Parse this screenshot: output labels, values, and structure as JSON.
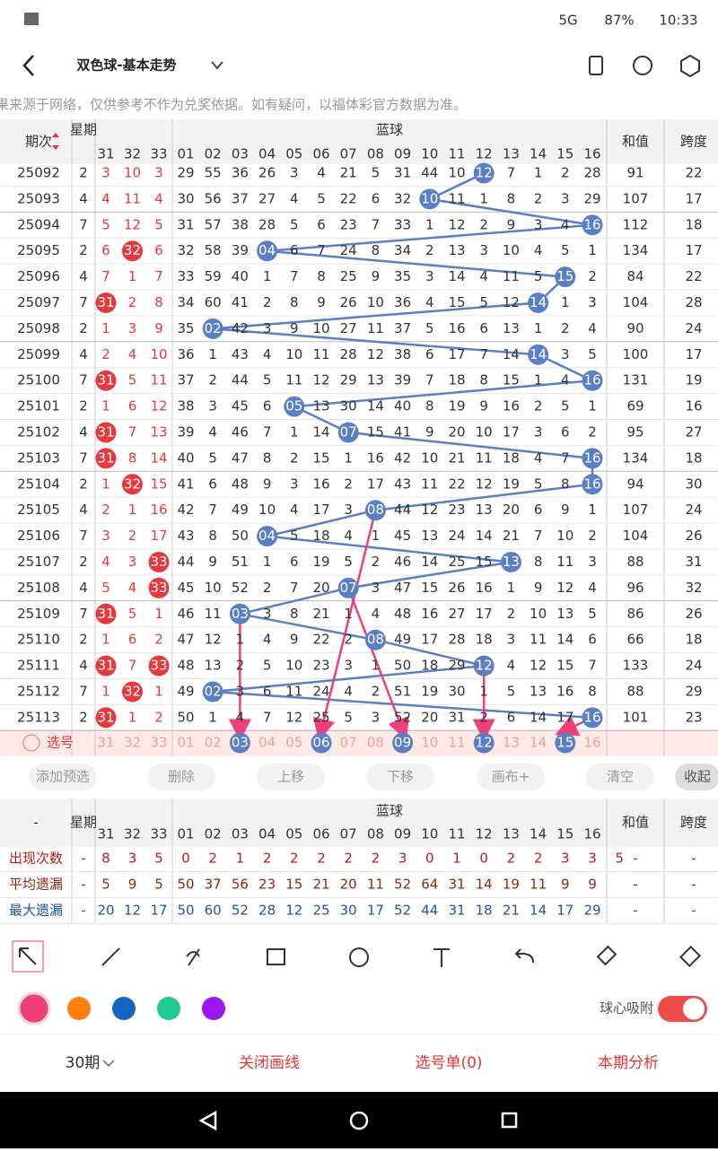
{
  "status_bar": {
    "network": "5G",
    "battery": "87%",
    "time": "10:33"
  },
  "header": {
    "title": "双色球-基本走势"
  },
  "notice": "注：开奖结果来源于网络，仅供参考不作为兑奖依据。如有疑问，以福体彩官方数据为准。",
  "table": {
    "headers": {
      "issue": "期次",
      "week": "星期",
      "blue_group": "蓝球",
      "sum": "和值",
      "span": "跨度",
      "red_cols": [
        "31",
        "32",
        "33"
      ],
      "blue_cols": [
        "01",
        "02",
        "03",
        "04",
        "05",
        "06",
        "07",
        "08",
        "09",
        "10",
        "11",
        "12",
        "13",
        "14",
        "15",
        "16"
      ]
    },
    "rows": [
      {
        "issue": "25092",
        "week": "2",
        "red": [
          "3",
          "10",
          "3"
        ],
        "red_balls": [],
        "blue": [
          "29",
          "55",
          "36",
          "26",
          "3",
          "4",
          "21",
          "5",
          "31",
          "44",
          "10",
          "12",
          "7",
          "1",
          "2",
          "28"
        ],
        "blue_ball": 11,
        "sum": "91",
        "span": "22"
      },
      {
        "issue": "25093",
        "week": "4",
        "red": [
          "4",
          "11",
          "4"
        ],
        "red_balls": [],
        "blue": [
          "30",
          "56",
          "37",
          "27",
          "4",
          "5",
          "22",
          "6",
          "32",
          "10",
          "11",
          "1",
          "8",
          "2",
          "3",
          "29"
        ],
        "blue_ball": 9,
        "sum": "107",
        "span": "17"
      },
      {
        "issue": "25094",
        "week": "7",
        "red": [
          "5",
          "12",
          "5"
        ],
        "red_balls": [],
        "blue": [
          "31",
          "57",
          "38",
          "28",
          "5",
          "6",
          "23",
          "7",
          "33",
          "1",
          "12",
          "2",
          "9",
          "3",
          "4",
          "16"
        ],
        "blue_ball": 15,
        "sum": "112",
        "span": "18"
      },
      {
        "issue": "25095",
        "week": "2",
        "red": [
          "6",
          "32",
          "6"
        ],
        "red_balls": [
          1
        ],
        "blue": [
          "32",
          "58",
          "39",
          "04",
          "6",
          "7",
          "24",
          "8",
          "34",
          "2",
          "13",
          "3",
          "10",
          "4",
          "5",
          "1"
        ],
        "blue_ball": 3,
        "sum": "134",
        "span": "17"
      },
      {
        "issue": "25096",
        "week": "4",
        "red": [
          "7",
          "1",
          "7"
        ],
        "red_balls": [],
        "blue": [
          "33",
          "59",
          "40",
          "1",
          "7",
          "8",
          "25",
          "9",
          "35",
          "3",
          "14",
          "4",
          "11",
          "5",
          "15",
          "2"
        ],
        "blue_ball": 14,
        "sum": "84",
        "span": "22"
      },
      {
        "issue": "25097",
        "week": "7",
        "red": [
          "31",
          "2",
          "8"
        ],
        "red_balls": [
          0
        ],
        "blue": [
          "34",
          "60",
          "41",
          "2",
          "8",
          "9",
          "26",
          "10",
          "36",
          "4",
          "15",
          "5",
          "12",
          "14",
          "1",
          "3"
        ],
        "blue_ball": 13,
        "sum": "104",
        "span": "28"
      },
      {
        "issue": "25098",
        "week": "2",
        "red": [
          "1",
          "3",
          "9"
        ],
        "red_balls": [],
        "blue": [
          "35",
          "02",
          "42",
          "3",
          "9",
          "10",
          "27",
          "11",
          "37",
          "5",
          "16",
          "6",
          "13",
          "1",
          "2",
          "4"
        ],
        "blue_ball": 1,
        "sum": "90",
        "span": "24"
      },
      {
        "issue": "25099",
        "week": "4",
        "red": [
          "2",
          "4",
          "10"
        ],
        "red_balls": [],
        "blue": [
          "36",
          "1",
          "43",
          "4",
          "10",
          "11",
          "28",
          "12",
          "38",
          "6",
          "17",
          "7",
          "14",
          "14",
          "3",
          "5"
        ],
        "blue_ball": 13,
        "sum": "100",
        "span": "17"
      },
      {
        "issue": "25100",
        "week": "7",
        "red": [
          "31",
          "5",
          "11"
        ],
        "red_balls": [
          0
        ],
        "blue": [
          "37",
          "2",
          "44",
          "5",
          "11",
          "12",
          "29",
          "13",
          "39",
          "7",
          "18",
          "8",
          "15",
          "1",
          "4",
          "16"
        ],
        "blue_ball": 15,
        "sum": "131",
        "span": "19"
      },
      {
        "issue": "25101",
        "week": "2",
        "red": [
          "1",
          "6",
          "12"
        ],
        "red_balls": [],
        "blue": [
          "38",
          "3",
          "45",
          "6",
          "05",
          "13",
          "30",
          "14",
          "40",
          "8",
          "19",
          "9",
          "16",
          "2",
          "5",
          "1"
        ],
        "blue_ball": 4,
        "sum": "69",
        "span": "16"
      },
      {
        "issue": "25102",
        "week": "4",
        "red": [
          "31",
          "7",
          "13"
        ],
        "red_balls": [
          0
        ],
        "blue": [
          "39",
          "4",
          "46",
          "7",
          "1",
          "14",
          "07",
          "15",
          "41",
          "9",
          "20",
          "10",
          "17",
          "3",
          "6",
          "2"
        ],
        "blue_ball": 6,
        "sum": "95",
        "span": "27"
      },
      {
        "issue": "25103",
        "week": "7",
        "red": [
          "31",
          "8",
          "14"
        ],
        "red_balls": [
          0
        ],
        "blue": [
          "40",
          "5",
          "47",
          "8",
          "2",
          "15",
          "1",
          "16",
          "42",
          "10",
          "21",
          "11",
          "18",
          "4",
          "7",
          "16"
        ],
        "blue_ball": 15,
        "sum": "134",
        "span": "18"
      },
      {
        "issue": "25104",
        "week": "2",
        "red": [
          "1",
          "32",
          "15"
        ],
        "red_balls": [
          1
        ],
        "blue": [
          "41",
          "6",
          "48",
          "9",
          "3",
          "16",
          "2",
          "17",
          "43",
          "11",
          "22",
          "12",
          "19",
          "5",
          "8",
          "16"
        ],
        "blue_ball": 15,
        "sum": "94",
        "span": "30"
      },
      {
        "issue": "25105",
        "week": "4",
        "red": [
          "2",
          "1",
          "16"
        ],
        "red_balls": [],
        "blue": [
          "42",
          "7",
          "49",
          "10",
          "4",
          "17",
          "3",
          "08",
          "44",
          "12",
          "23",
          "13",
          "20",
          "6",
          "9",
          "1"
        ],
        "blue_ball": 7,
        "sum": "107",
        "span": "24"
      },
      {
        "issue": "25106",
        "week": "7",
        "red": [
          "3",
          "2",
          "17"
        ],
        "red_balls": [],
        "blue": [
          "43",
          "8",
          "50",
          "04",
          "5",
          "18",
          "4",
          "1",
          "45",
          "13",
          "24",
          "14",
          "21",
          "7",
          "10",
          "2"
        ],
        "blue_ball": 3,
        "sum": "104",
        "span": "26"
      },
      {
        "issue": "25107",
        "week": "2",
        "red": [
          "4",
          "3",
          "33"
        ],
        "red_balls": [
          2
        ],
        "blue": [
          "44",
          "9",
          "51",
          "1",
          "6",
          "19",
          "5",
          "2",
          "46",
          "14",
          "25",
          "15",
          "13",
          "8",
          "11",
          "3"
        ],
        "blue_ball": 12,
        "sum": "88",
        "span": "31"
      },
      {
        "issue": "25108",
        "week": "4",
        "red": [
          "5",
          "4",
          "33"
        ],
        "red_balls": [
          2
        ],
        "blue": [
          "45",
          "10",
          "52",
          "2",
          "7",
          "20",
          "07",
          "3",
          "47",
          "15",
          "26",
          "16",
          "1",
          "9",
          "12",
          "4"
        ],
        "blue_ball": 6,
        "sum": "96",
        "span": "32"
      },
      {
        "issue": "25109",
        "week": "7",
        "red": [
          "31",
          "5",
          "1"
        ],
        "red_balls": [
          0
        ],
        "blue": [
          "46",
          "11",
          "03",
          "3",
          "8",
          "21",
          "1",
          "4",
          "48",
          "16",
          "27",
          "17",
          "2",
          "10",
          "13",
          "5"
        ],
        "blue_ball": 2,
        "sum": "86",
        "span": "26"
      },
      {
        "issue": "25110",
        "week": "2",
        "red": [
          "1",
          "6",
          "2"
        ],
        "red_balls": [],
        "blue": [
          "47",
          "12",
          "1",
          "4",
          "9",
          "22",
          "2",
          "08",
          "49",
          "17",
          "28",
          "18",
          "3",
          "11",
          "14",
          "6"
        ],
        "blue_ball": 7,
        "sum": "66",
        "span": "18"
      },
      {
        "issue": "25111",
        "week": "4",
        "red": [
          "31",
          "7",
          "33"
        ],
        "red_balls": [
          0,
          2
        ],
        "blue": [
          "48",
          "13",
          "2",
          "5",
          "10",
          "23",
          "3",
          "1",
          "50",
          "18",
          "29",
          "12",
          "4",
          "12",
          "15",
          "7"
        ],
        "blue_ball": 11,
        "sum": "133",
        "span": "24"
      },
      {
        "issue": "25112",
        "week": "7",
        "red": [
          "1",
          "32",
          "1"
        ],
        "red_balls": [
          1
        ],
        "blue": [
          "49",
          "02",
          "3",
          "6",
          "11",
          "24",
          "4",
          "2",
          "51",
          "19",
          "30",
          "1",
          "5",
          "13",
          "16",
          "8"
        ],
        "blue_ball": 1,
        "sum": "88",
        "span": "29"
      },
      {
        "issue": "25113",
        "week": "2",
        "red": [
          "31",
          "1",
          "2"
        ],
        "red_balls": [
          0
        ],
        "blue": [
          "50",
          "1",
          "4",
          "7",
          "12",
          "25",
          "5",
          "3",
          "52",
          "20",
          "31",
          "2",
          "6",
          "14",
          "17",
          "16"
        ],
        "blue_ball": 15,
        "sum": "101",
        "span": "23"
      }
    ],
    "select_row": {
      "label": "选号",
      "selected": [
        2,
        5,
        8,
        11,
        14
      ]
    }
  },
  "actions": [
    "添加预选",
    "删除",
    "上移",
    "下移",
    "画布+",
    "清空",
    "收起"
  ],
  "stats": {
    "headers": {
      "first": "-",
      "week": "星期",
      "blue_group": "蓝球",
      "sum": "和值",
      "span": "跨度"
    },
    "rows": [
      {
        "label": "出现次数",
        "week": "-",
        "cells": [
          "8",
          "3",
          "5",
          "0",
          "2",
          "1",
          "2",
          "2",
          "2",
          "2",
          "2",
          "3",
          "0",
          "1",
          "0",
          "2",
          "2",
          "3",
          "3",
          "5"
        ],
        "sum": "-",
        "span": "-"
      },
      {
        "label": "平均遗漏",
        "week": "-",
        "cells": [
          "5",
          "9",
          "5",
          "50",
          "37",
          "56",
          "23",
          "15",
          "21",
          "20",
          "11",
          "52",
          "64",
          "31",
          "14",
          "19",
          "11",
          "9",
          "9"
        ],
        "sum": "-",
        "span": "-"
      },
      {
        "label": "最大遗漏",
        "week": "-",
        "cells": [
          "20",
          "12",
          "17",
          "50",
          "60",
          "52",
          "28",
          "12",
          "25",
          "30",
          "17",
          "52",
          "44",
          "31",
          "18",
          "21",
          "14",
          "17",
          "29"
        ],
        "sum": "-",
        "span": "-"
      }
    ]
  },
  "toolbar": {
    "magnet": "球心吸附"
  },
  "footer": [
    "30期",
    "关闭画线",
    "选号单(0)",
    "本期分析"
  ]
}
